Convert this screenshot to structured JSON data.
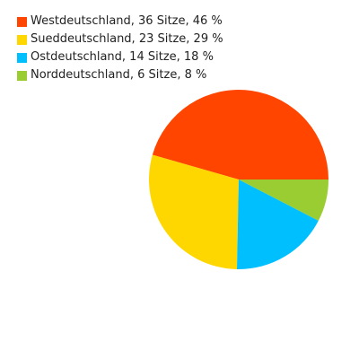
{
  "chart_data": {
    "type": "pie",
    "title": "",
    "slices": [
      {
        "label": "Westdeutschland, 36 Sitze, 46 %",
        "category": "Westdeutschland",
        "seats": 36,
        "percent": 46,
        "color": "#ff4500"
      },
      {
        "label": "Sueddeutschland, 23 Sitze, 29 %",
        "category": "Sueddeutschland",
        "seats": 23,
        "percent": 29,
        "color": "#ffd700"
      },
      {
        "label": "Ostdeutschland, 14 Sitze, 18 %",
        "category": "Ostdeutschland",
        "seats": 14,
        "percent": 18,
        "color": "#00bfff"
      },
      {
        "label": "Norddeutschland, 6 Sitze, 8 %",
        "category": "Norddeutschland",
        "seats": 6,
        "percent": 8,
        "color": "#9acd32"
      }
    ],
    "legend_position": "top-left",
    "start_direction": "east, counter-clockwise"
  }
}
